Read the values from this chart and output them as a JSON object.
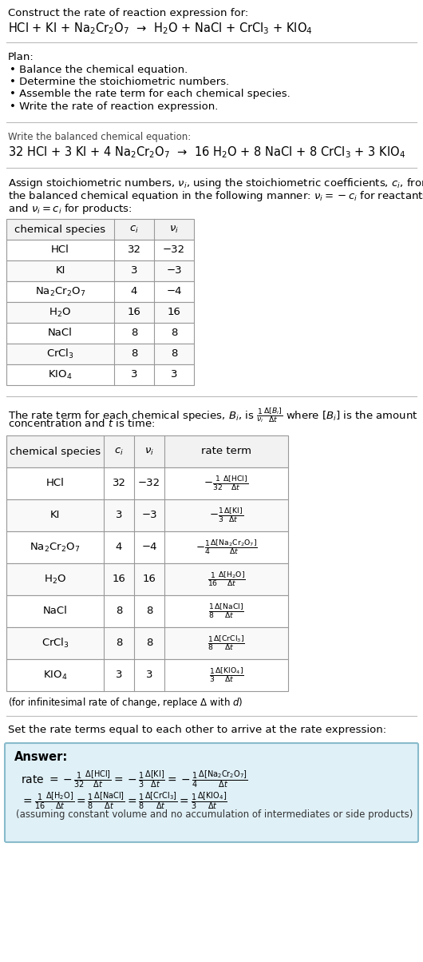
{
  "bg_color": "#ffffff",
  "title_line1": "Construct the rate of reaction expression for:",
  "reaction_unbalanced": "HCl + KI + Na$_2$Cr$_2$O$_7$  →  H$_2$O + NaCl + CrCl$_3$ + KIO$_4$",
  "plan_header": "Plan:",
  "plan_items": [
    "• Balance the chemical equation.",
    "• Determine the stoichiometric numbers.",
    "• Assemble the rate term for each chemical species.",
    "• Write the rate of reaction expression."
  ],
  "balanced_header": "Write the balanced chemical equation:",
  "reaction_balanced": "32 HCl + 3 KI + 4 Na$_2$Cr$_2$O$_7$  →  16 H$_2$O + 8 NaCl + 8 CrCl$_3$ + 3 KIO$_4$",
  "stoich_intro_lines": [
    "Assign stoichiometric numbers, $\\nu_i$, using the stoichiometric coefficients, $c_i$, from",
    "the balanced chemical equation in the following manner: $\\nu_i = -c_i$ for reactants",
    "and $\\nu_i = c_i$ for products:"
  ],
  "table1_headers": [
    "chemical species",
    "$c_i$",
    "$\\nu_i$"
  ],
  "table1_rows": [
    [
      "HCl",
      "32",
      "−32"
    ],
    [
      "KI",
      "3",
      "−3"
    ],
    [
      "Na$_2$Cr$_2$O$_7$",
      "4",
      "−4"
    ],
    [
      "H$_2$O",
      "16",
      "16"
    ],
    [
      "NaCl",
      "8",
      "8"
    ],
    [
      "CrCl$_3$",
      "8",
      "8"
    ],
    [
      "KIO$_4$",
      "3",
      "3"
    ]
  ],
  "rate_intro_lines": [
    "The rate term for each chemical species, $B_i$, is $\\frac{1}{\\nu_i}\\frac{\\Delta[B_i]}{\\Delta t}$ where $[B_i]$ is the amount",
    "concentration and $t$ is time:"
  ],
  "table2_headers": [
    "chemical species",
    "$c_i$",
    "$\\nu_i$",
    "rate term"
  ],
  "table2_rows": [
    [
      "HCl",
      "32",
      "−32",
      "$-\\frac{1}{32}\\frac{\\Delta[\\mathrm{HCl}]}{\\Delta t}$"
    ],
    [
      "KI",
      "3",
      "−3",
      "$-\\frac{1}{3}\\frac{\\Delta[\\mathrm{KI}]}{\\Delta t}$"
    ],
    [
      "Na$_2$Cr$_2$O$_7$",
      "4",
      "−4",
      "$-\\frac{1}{4}\\frac{\\Delta[\\mathrm{Na_2Cr_2O_7}]}{\\Delta t}$"
    ],
    [
      "H$_2$O",
      "16",
      "16",
      "$\\frac{1}{16}\\frac{\\Delta[\\mathrm{H_2O}]}{\\Delta t}$"
    ],
    [
      "NaCl",
      "8",
      "8",
      "$\\frac{1}{8}\\frac{\\Delta[\\mathrm{NaCl}]}{\\Delta t}$"
    ],
    [
      "CrCl$_3$",
      "8",
      "8",
      "$\\frac{1}{8}\\frac{\\Delta[\\mathrm{CrCl_3}]}{\\Delta t}$"
    ],
    [
      "KIO$_4$",
      "3",
      "3",
      "$\\frac{1}{3}\\frac{\\Delta[\\mathrm{KIO_4}]}{\\Delta t}$"
    ]
  ],
  "infinitesimal_note": "(for infinitesimal rate of change, replace Δ with $d$)",
  "set_equal_text": "Set the rate terms equal to each other to arrive at the rate expression:",
  "answer_box_color": "#dff0f7",
  "answer_box_border": "#88bbcc",
  "answer_label": "Answer:",
  "answer_line1": "rate $= -\\frac{1}{32}\\frac{\\Delta[\\mathrm{HCl}]}{\\Delta t} = -\\frac{1}{3}\\frac{\\Delta[\\mathrm{KI}]}{\\Delta t} = -\\frac{1}{4}\\frac{\\Delta[\\mathrm{Na_2Cr_2O_7}]}{\\Delta t}$",
  "answer_line2": "$= \\frac{1}{16}\\frac{\\Delta[\\mathrm{H_2O}]}{\\Delta t} = \\frac{1}{8}\\frac{\\Delta[\\mathrm{NaCl}]}{\\Delta t} = \\frac{1}{8}\\frac{\\Delta[\\mathrm{CrCl_3}]}{\\Delta t} = \\frac{1}{3}\\frac{\\Delta[\\mathrm{KIO_4}]}{\\Delta t}$",
  "answer_note": "(assuming constant volume and no accumulation of intermediates or side products)",
  "sep_color": "#bbbbbb",
  "table_border_color": "#999999",
  "table_header_bg": "#f2f2f2",
  "table_row_bg_odd": "#ffffff",
  "table_row_bg_even": "#f9f9f9"
}
